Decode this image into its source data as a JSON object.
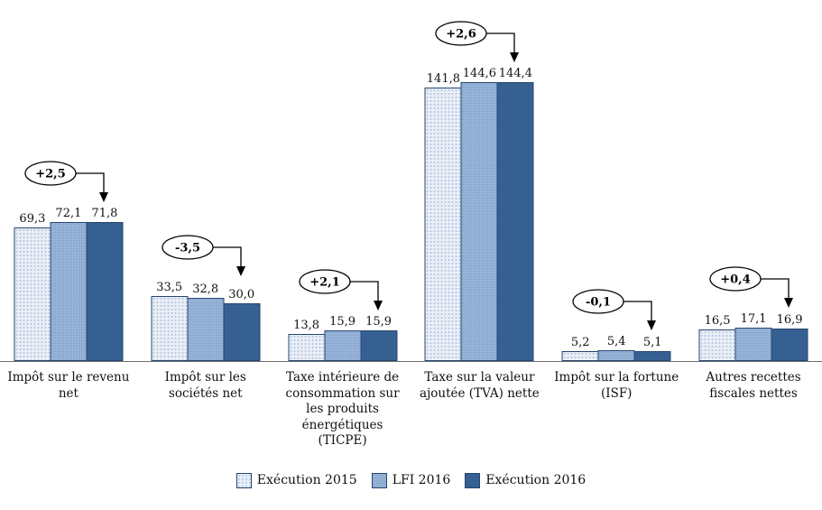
{
  "chart_data": {
    "type": "bar",
    "title": "",
    "xlabel": "",
    "ylabel": "",
    "grid": false,
    "legend_position": "bottom",
    "ylim": [
      0,
      160
    ],
    "categories": [
      "Impôt sur le revenu net",
      "Impôt sur les sociétés net",
      "Taxe intérieure de consommation sur les produits énergétiques (TICPE)",
      "Taxe sur la valeur ajoutée (TVA) nette",
      "Impôt sur la fortune (ISF)",
      "Autres recettes fiscales nettes"
    ],
    "series": [
      {
        "name": "Exécution 2015",
        "values": [
          69.3,
          33.5,
          13.8,
          141.8,
          5.2,
          16.5
        ],
        "display": [
          "69,3",
          "33,5",
          "13,8",
          "141,8",
          "5,2",
          "16,5"
        ]
      },
      {
        "name": "LFI 2016",
        "values": [
          72.1,
          32.8,
          15.9,
          144.6,
          5.4,
          17.1
        ],
        "display": [
          "72,1",
          "32,8",
          "15,9",
          "144,6",
          "5,4",
          "17,1"
        ]
      },
      {
        "name": "Exécution 2016",
        "values": [
          71.8,
          30.0,
          15.9,
          144.4,
          5.1,
          16.9
        ],
        "display": [
          "71,8",
          "30,0",
          "15,9",
          "144,4",
          "5,1",
          "16,9"
        ]
      }
    ],
    "annotations": [
      "+2,5",
      "-3,5",
      "+2,1",
      "+2,6",
      "-0,1",
      "+0,4"
    ],
    "colors": {
      "execution_2015": "#e9eef7",
      "lfi_2016": "#98b4d8",
      "execution_2016": "#376092",
      "bar_border": "#24456e",
      "axis_line": "#6f6f6f"
    }
  }
}
